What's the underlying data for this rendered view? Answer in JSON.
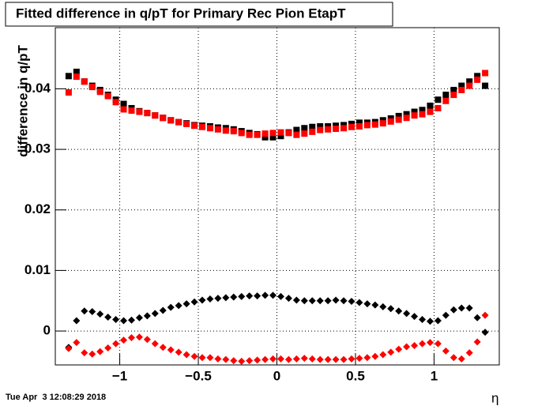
{
  "chart_data": {
    "type": "scatter",
    "title": "Fitted difference in q/pT for Primary Rec Pion EtapT",
    "y_label": "difference in q/pT",
    "x_label": "η",
    "timestamp": "Tue Apr  3 12:08:29 2018",
    "grid": true,
    "xlim": [
      -1.41,
      1.415
    ],
    "ylim": [
      -0.0056,
      0.0501
    ],
    "xticks": [
      {
        "value": -1,
        "label": "−1"
      },
      {
        "value": -0.5,
        "label": "−0.5"
      },
      0,
      0.5,
      1
    ],
    "yticks": [
      0,
      0.01,
      0.02,
      0.03,
      0.04
    ],
    "x": [
      -1.325,
      -1.275,
      -1.225,
      -1.175,
      -1.125,
      -1.075,
      -1.025,
      -0.975,
      -0.925,
      -0.875,
      -0.825,
      -0.775,
      -0.725,
      -0.675,
      -0.625,
      -0.575,
      -0.525,
      -0.475,
      -0.425,
      -0.375,
      -0.325,
      -0.275,
      -0.225,
      -0.175,
      -0.125,
      -0.075,
      -0.025,
      0.025,
      0.075,
      0.125,
      0.175,
      0.225,
      0.275,
      0.325,
      0.375,
      0.425,
      0.475,
      0.525,
      0.575,
      0.625,
      0.675,
      0.725,
      0.775,
      0.825,
      0.875,
      0.925,
      0.975,
      1.025,
      1.075,
      1.125,
      1.175,
      1.225,
      1.275,
      1.325
    ],
    "series": [
      {
        "marker": "square",
        "color": "#000000",
        "values": [
          0.0421,
          0.0428,
          0.0412,
          0.0405,
          0.0398,
          0.039,
          0.0382,
          0.0375,
          0.0368,
          0.0363,
          0.036,
          0.0356,
          0.0352,
          0.0348,
          0.0345,
          0.0343,
          0.034,
          0.0339,
          0.0338,
          0.0336,
          0.0335,
          0.0333,
          0.033,
          0.0327,
          0.0325,
          0.032,
          0.032,
          0.0322,
          0.0328,
          0.0332,
          0.0335,
          0.0337,
          0.0338,
          0.0338,
          0.0339,
          0.034,
          0.0342,
          0.0344,
          0.0344,
          0.0345,
          0.0348,
          0.0351,
          0.0355,
          0.0358,
          0.0362,
          0.0365,
          0.0372,
          0.0382,
          0.039,
          0.0398,
          0.0405,
          0.0412,
          0.0421,
          0.0405
        ]
      },
      {
        "marker": "square",
        "color": "#ff0000",
        "values": [
          0.0394,
          0.042,
          0.0412,
          0.0403,
          0.0395,
          0.0388,
          0.0378,
          0.0366,
          0.0364,
          0.0362,
          0.036,
          0.0356,
          0.0352,
          0.0348,
          0.0345,
          0.0342,
          0.0339,
          0.0337,
          0.0335,
          0.0333,
          0.0331,
          0.033,
          0.0327,
          0.0324,
          0.0324,
          0.0326,
          0.0327,
          0.0328,
          0.0327,
          0.0324,
          0.0326,
          0.0329,
          0.0332,
          0.0333,
          0.0334,
          0.0335,
          0.0337,
          0.0338,
          0.034,
          0.0341,
          0.0343,
          0.0346,
          0.0349,
          0.0352,
          0.0356,
          0.0358,
          0.0362,
          0.0368,
          0.038,
          0.039,
          0.0398,
          0.0405,
          0.0415,
          0.0426
        ]
      },
      {
        "marker": "diamond",
        "color": "#000000",
        "values": [
          -0.0027,
          0.0017,
          0.0033,
          0.0032,
          0.0028,
          0.0023,
          0.0019,
          0.0017,
          0.0018,
          0.0022,
          0.0025,
          0.0029,
          0.0034,
          0.0039,
          0.0042,
          0.0045,
          0.0048,
          0.0051,
          0.0053,
          0.0054,
          0.0055,
          0.0056,
          0.0057,
          0.0058,
          0.0058,
          0.0059,
          0.0059,
          0.0057,
          0.0054,
          0.0051,
          0.005,
          0.005,
          0.005,
          0.005,
          0.0051,
          0.005,
          0.0049,
          0.0047,
          0.0045,
          0.0043,
          0.004,
          0.0037,
          0.0033,
          0.0029,
          0.0024,
          0.0019,
          0.0016,
          0.0017,
          0.0026,
          0.0035,
          0.0038,
          0.0038,
          0.0022,
          -0.0002
        ]
      },
      {
        "marker": "diamond",
        "color": "#ff0000",
        "values": [
          -0.0029,
          -0.0019,
          -0.0036,
          -0.0038,
          -0.0034,
          -0.0028,
          -0.0021,
          -0.0015,
          -0.0011,
          -0.001,
          -0.0014,
          -0.0021,
          -0.0027,
          -0.0031,
          -0.0035,
          -0.0039,
          -0.0042,
          -0.0044,
          -0.0044,
          -0.0046,
          -0.0047,
          -0.0049,
          -0.005,
          -0.0049,
          -0.0048,
          -0.0047,
          -0.0046,
          -0.0046,
          -0.0047,
          -0.0046,
          -0.0045,
          -0.0046,
          -0.0047,
          -0.0047,
          -0.0047,
          -0.0047,
          -0.0046,
          -0.0045,
          -0.0044,
          -0.0042,
          -0.0039,
          -0.0035,
          -0.003,
          -0.0026,
          -0.0024,
          -0.0021,
          -0.0019,
          -0.0021,
          -0.0033,
          -0.0044,
          -0.0046,
          -0.0036,
          -0.0018,
          0.0026
        ]
      }
    ]
  }
}
